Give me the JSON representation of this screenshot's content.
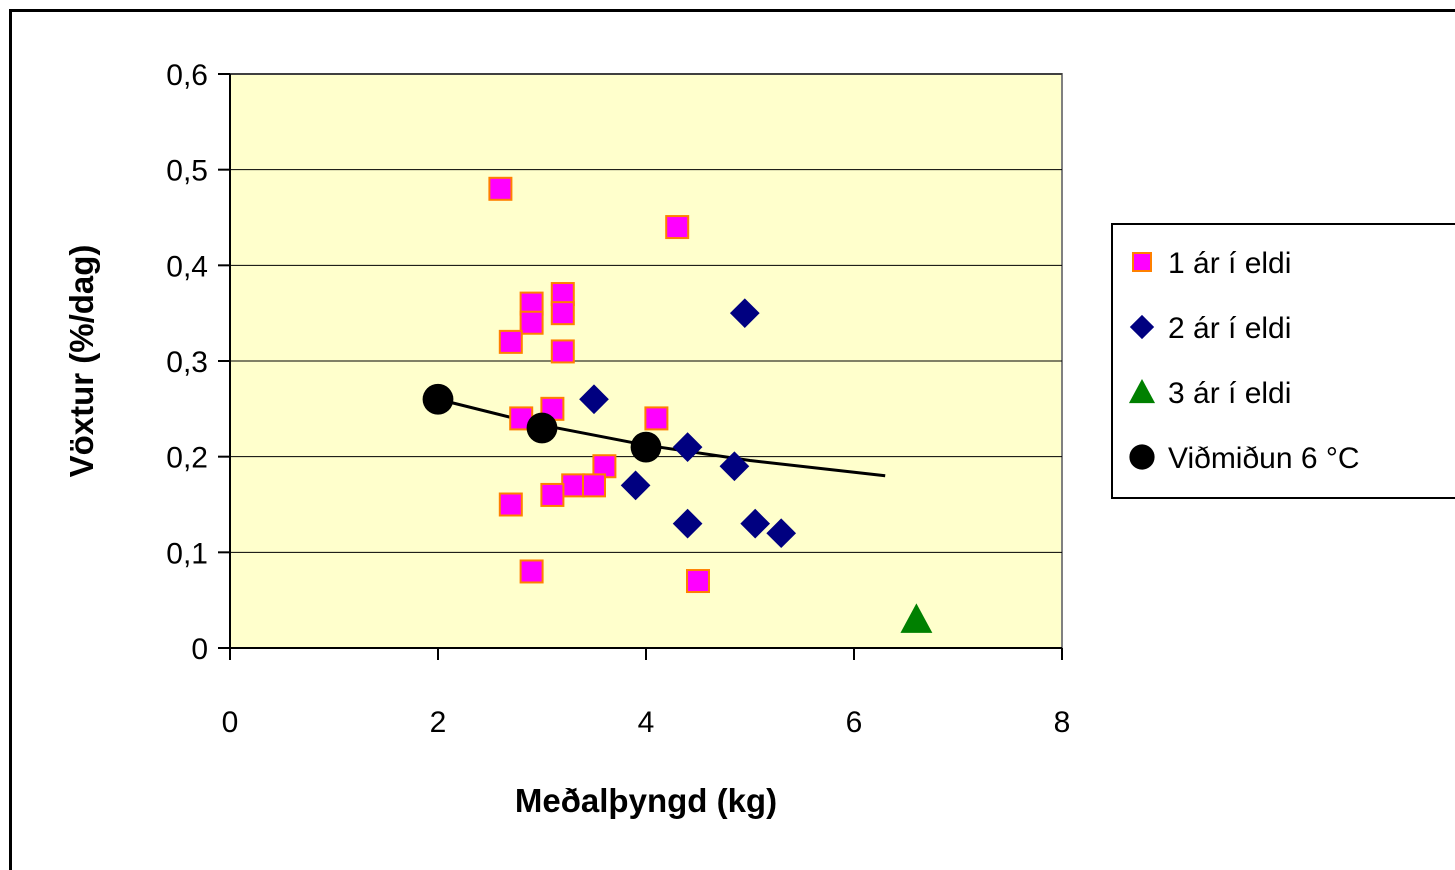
{
  "chart_data": {
    "type": "scatter",
    "xlabel": "Meðalþyngd (kg)",
    "ylabel": "Vöxtur (%/dag)",
    "xlim": [
      0,
      8
    ],
    "ylim": [
      0,
      0.6
    ],
    "x_ticks": [
      0,
      2,
      4,
      6,
      8
    ],
    "x_tick_labels": [
      "0",
      "2",
      "4",
      "6",
      "8"
    ],
    "y_ticks": [
      0,
      0.1,
      0.2,
      0.3,
      0.4,
      0.5,
      0.6
    ],
    "y_tick_labels": [
      "0",
      "0,1",
      "0,2",
      "0,3",
      "0,4",
      "0,5",
      "0,6"
    ],
    "grid": "horizontal",
    "plot_background": "#ffffcc",
    "legend_position": "right",
    "series": [
      {
        "name": "1 ár í eldi",
        "marker": "square",
        "color": "#ff00ff",
        "edge_color": "#ff8000",
        "points": [
          [
            2.6,
            0.48
          ],
          [
            4.3,
            0.44
          ],
          [
            3.2,
            0.37
          ],
          [
            2.9,
            0.36
          ],
          [
            3.2,
            0.35
          ],
          [
            2.9,
            0.34
          ],
          [
            2.7,
            0.32
          ],
          [
            3.2,
            0.31
          ],
          [
            3.1,
            0.25
          ],
          [
            2.8,
            0.24
          ],
          [
            4.1,
            0.24
          ],
          [
            3.6,
            0.19
          ],
          [
            3.3,
            0.17
          ],
          [
            3.5,
            0.17
          ],
          [
            3.1,
            0.16
          ],
          [
            2.7,
            0.15
          ],
          [
            2.9,
            0.08
          ],
          [
            4.5,
            0.07
          ]
        ]
      },
      {
        "name": "2 ár í eldi",
        "marker": "diamond",
        "color": "#000080",
        "points": [
          [
            4.95,
            0.35
          ],
          [
            3.5,
            0.26
          ],
          [
            4.4,
            0.21
          ],
          [
            4.85,
            0.19
          ],
          [
            3.9,
            0.17
          ],
          [
            4.4,
            0.13
          ],
          [
            5.05,
            0.13
          ],
          [
            5.3,
            0.12
          ]
        ]
      },
      {
        "name": "3 ár í eldi",
        "marker": "triangle",
        "color": "#008000",
        "points": [
          [
            6.6,
            0.03
          ]
        ]
      },
      {
        "name": "Viðmiðun 6 °C",
        "marker": "circle",
        "color": "#000000",
        "points": [
          [
            2,
            0.26
          ],
          [
            3,
            0.23
          ],
          [
            4,
            0.21
          ]
        ]
      }
    ],
    "trend_line": {
      "color": "#000000",
      "x_range": [
        2,
        6.3
      ],
      "points": [
        [
          2,
          0.26
        ],
        [
          3,
          0.233
        ],
        [
          4,
          0.212
        ],
        [
          5,
          0.196
        ],
        [
          6.3,
          0.18
        ]
      ]
    }
  }
}
